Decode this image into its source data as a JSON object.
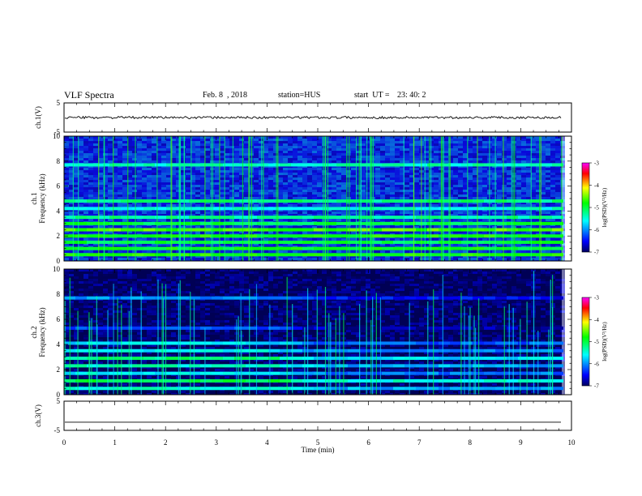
{
  "header": {
    "title": "VLF Spectra",
    "date": "Feb. 8  , 2018",
    "station": "station=HUS",
    "start_label": "start  UT =",
    "start_time": "23: 40: 2"
  },
  "colorbar": {
    "label": "log(PSD)(V²/Hz)",
    "ticks": [
      "-3",
      "-4",
      "-5",
      "-6",
      "-7"
    ],
    "colors": [
      "#ff00ff",
      "#ff0000",
      "#ffff00",
      "#00ff00",
      "#00ffff",
      "#0000ff",
      "#000060"
    ]
  },
  "chart_data": [
    {
      "type": "line",
      "panel": "ch1-waveform",
      "ylabel": "ch.1(V)",
      "ylim": [
        -5,
        5
      ],
      "yticks": [
        "5",
        "-5"
      ],
      "x": [
        0,
        1,
        2,
        3,
        4,
        5,
        6,
        7,
        8,
        9,
        9.8
      ],
      "y": [
        0,
        0,
        0,
        0,
        0,
        0,
        0,
        0,
        0,
        0,
        0
      ]
    },
    {
      "type": "heatmap",
      "panel": "ch1-spectrogram",
      "ylabel": "ch.1\nFrequency (kHz)",
      "ylim": [
        0,
        10
      ],
      "yticks": [
        "0",
        "2",
        "4",
        "6",
        "8",
        "10"
      ],
      "x_extent_min": [
        0,
        9.8
      ],
      "bands_khz": [
        {
          "f": 0.5,
          "level": -4.8
        },
        {
          "f": 1.0,
          "level": -4.9
        },
        {
          "f": 1.5,
          "level": -5.0
        },
        {
          "f": 2.0,
          "level": -4.8
        },
        {
          "f": 2.5,
          "level": -4.6
        },
        {
          "f": 3.0,
          "level": -5.0
        },
        {
          "f": 3.5,
          "level": -5.3
        },
        {
          "f": 4.2,
          "level": -5.5
        },
        {
          "f": 4.8,
          "level": -5.2
        },
        {
          "f": 7.7,
          "level": -5.4
        }
      ],
      "background_level": -6.3
    },
    {
      "type": "heatmap",
      "panel": "ch2-spectrogram",
      "ylabel": "ch.2\nFrequency (kHz)",
      "ylim": [
        0,
        10
      ],
      "yticks": [
        "0",
        "2",
        "4",
        "6",
        "8",
        "10"
      ],
      "x_extent_min": [
        0,
        9.8
      ],
      "bands_khz": [
        {
          "f": 0.5,
          "level": -5.4
        },
        {
          "f": 1.1,
          "level": -5.0
        },
        {
          "f": 1.7,
          "level": -5.6
        },
        {
          "f": 2.3,
          "level": -5.4
        },
        {
          "f": 2.9,
          "level": -5.2
        },
        {
          "f": 3.5,
          "level": -5.6
        },
        {
          "f": 4.1,
          "level": -5.7
        },
        {
          "f": 5.3,
          "level": -6.3
        },
        {
          "f": 7.7,
          "level": -6.0
        }
      ],
      "background_level": -6.9
    },
    {
      "type": "line",
      "panel": "ch3-waveform",
      "ylabel": "ch.3(V)",
      "ylim": [
        -5,
        5
      ],
      "yticks": [
        "5",
        "-5"
      ],
      "xlabel": "Time (min)",
      "xlim": [
        0,
        10
      ],
      "xticks": [
        "0",
        "1",
        "2",
        "3",
        "4",
        "5",
        "6",
        "7",
        "8",
        "9",
        "10"
      ],
      "x": [
        0,
        9.8
      ],
      "y": [
        -2.2,
        -2.2
      ]
    }
  ]
}
